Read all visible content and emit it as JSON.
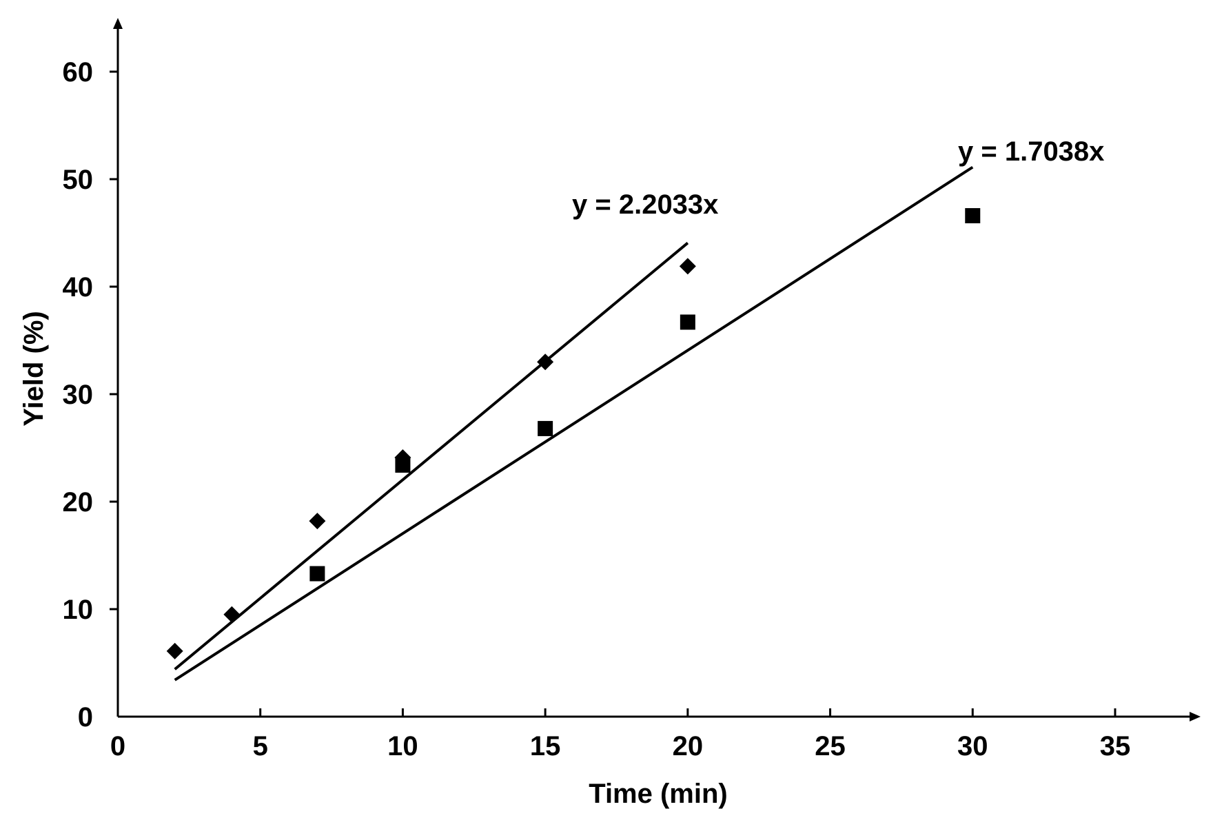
{
  "chart_data": {
    "type": "scatter",
    "title": "",
    "xlabel": "Time (min)",
    "ylabel": "Yield (%)",
    "xlim": [
      0,
      38
    ],
    "ylim": [
      0,
      65
    ],
    "xticks": [
      0,
      5,
      10,
      15,
      20,
      25,
      30,
      35
    ],
    "yticks": [
      0,
      10,
      20,
      30,
      40,
      50,
      60
    ],
    "grid": false,
    "series": [
      {
        "name": "diamond series",
        "marker": "diamond",
        "color": "#000000",
        "x": [
          2,
          4,
          7,
          10,
          15,
          20
        ],
        "y": [
          6.1,
          9.5,
          18.2,
          24.1,
          33.0,
          41.9
        ],
        "trendline": {
          "slope": 2.2033,
          "x_range": [
            2,
            20
          ],
          "label": "y = 2.2033x"
        }
      },
      {
        "name": "square series",
        "marker": "square",
        "color": "#000000",
        "x": [
          7,
          10,
          15,
          20,
          30
        ],
        "y": [
          13.3,
          23.4,
          26.8,
          36.7,
          46.6
        ],
        "trendline": {
          "slope": 1.7038,
          "x_range": [
            2,
            30
          ],
          "label": "y = 1.7038x"
        }
      }
    ]
  }
}
